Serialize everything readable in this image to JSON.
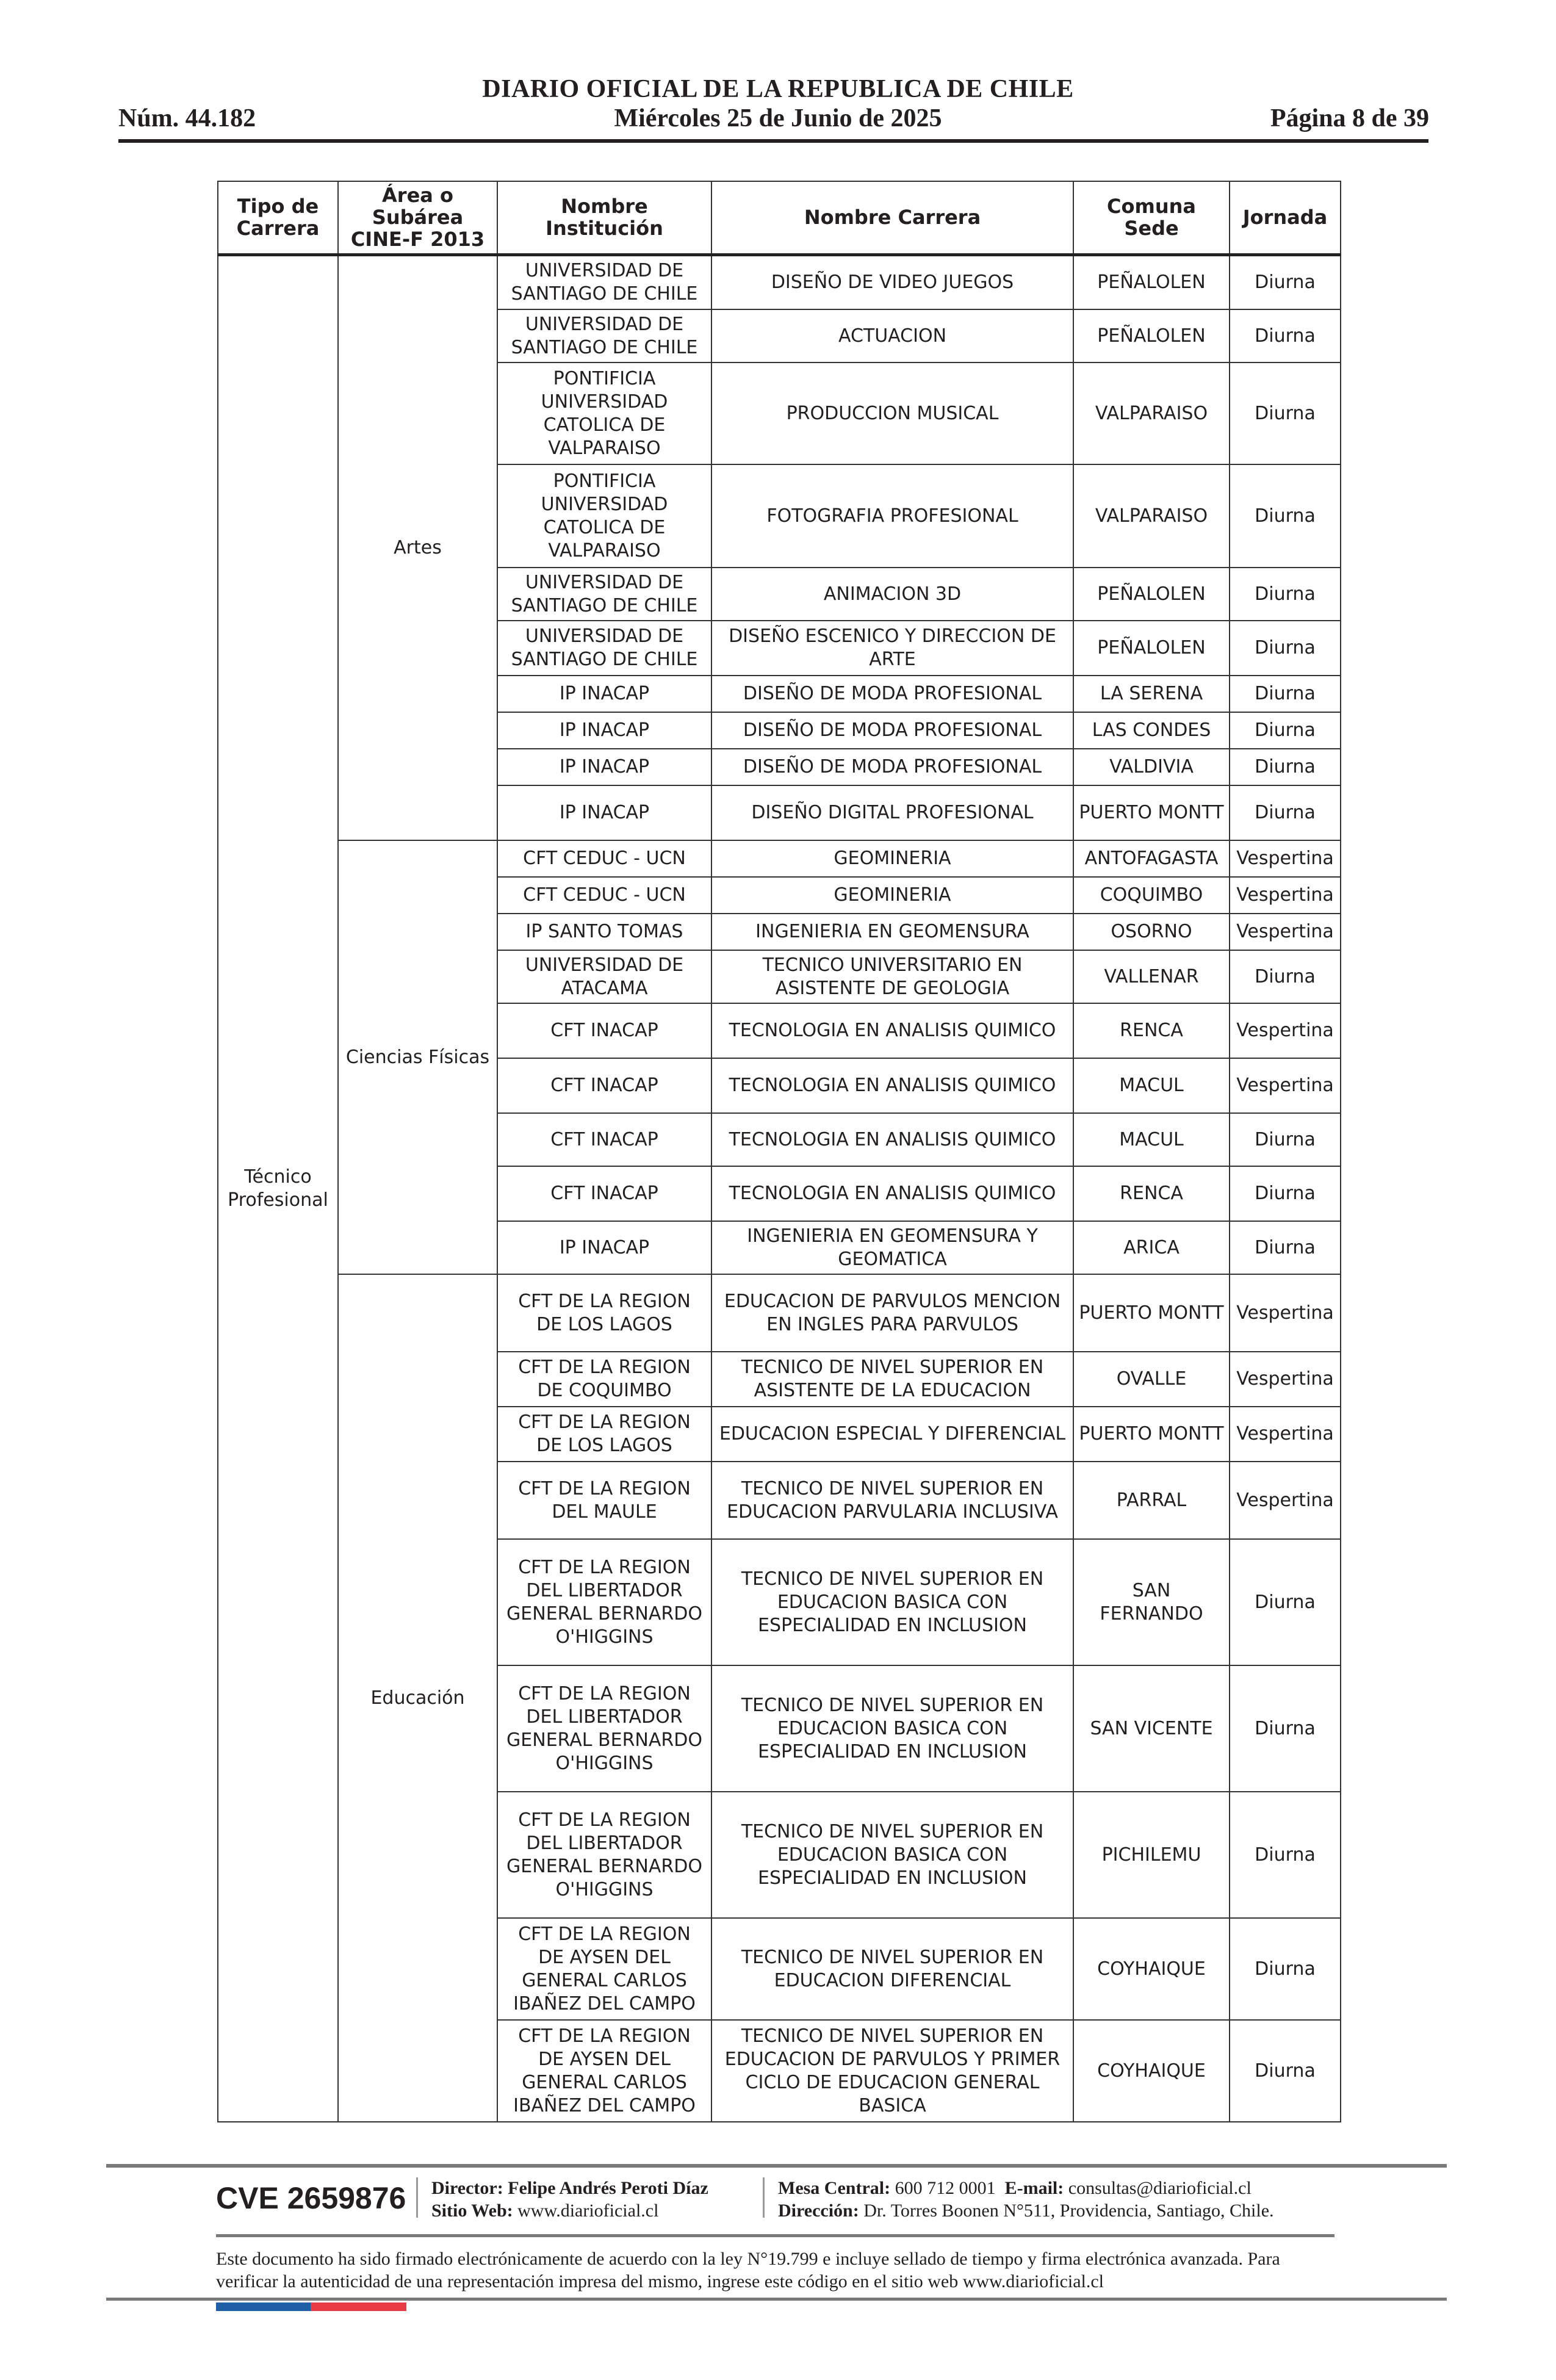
{
  "header": {
    "title": "DIARIO OFICIAL DE LA REPUBLICA DE CHILE",
    "number": "Núm. 44.182",
    "date": "Miércoles 25 de Junio de 2025",
    "page": "Página 8 de 39"
  },
  "table": {
    "headers": [
      "Tipo de Carrera",
      "Área o Subárea CINE-F 2013",
      "Nombre Institución",
      "Nombre Carrera",
      "Comuna Sede",
      "Jornada"
    ],
    "tipo": "Técnico Profesional",
    "groups": [
      {
        "area": "Artes",
        "rows": [
          [
            "UNIVERSIDAD DE SANTIAGO DE CHILE",
            "DISEÑO DE VIDEO JUEGOS",
            "PEÑALOLEN",
            "Diurna"
          ],
          [
            "UNIVERSIDAD DE SANTIAGO DE CHILE",
            "ACTUACION",
            "PEÑALOLEN",
            "Diurna"
          ],
          [
            "PONTIFICIA UNIVERSIDAD CATOLICA DE VALPARAISO",
            "PRODUCCION MUSICAL",
            "VALPARAISO",
            "Diurna"
          ],
          [
            "PONTIFICIA UNIVERSIDAD CATOLICA DE VALPARAISO",
            "FOTOGRAFIA PROFESIONAL",
            "VALPARAISO",
            "Diurna"
          ],
          [
            "UNIVERSIDAD DE SANTIAGO DE CHILE",
            "ANIMACION 3D",
            "PEÑALOLEN",
            "Diurna"
          ],
          [
            "UNIVERSIDAD DE SANTIAGO DE CHILE",
            "DISEÑO ESCENICO Y DIRECCION DE ARTE",
            "PEÑALOLEN",
            "Diurna"
          ],
          [
            "IP INACAP",
            "DISEÑO DE MODA PROFESIONAL",
            "LA SERENA",
            "Diurna"
          ],
          [
            "IP INACAP",
            "DISEÑO DE MODA PROFESIONAL",
            "LAS CONDES",
            "Diurna"
          ],
          [
            "IP INACAP",
            "DISEÑO DE MODA PROFESIONAL",
            "VALDIVIA",
            "Diurna"
          ],
          [
            "IP INACAP",
            "DISEÑO DIGITAL PROFESIONAL",
            "PUERTO MONTT",
            "Diurna"
          ]
        ]
      },
      {
        "area": "Ciencias Físicas",
        "rows": [
          [
            "CFT CEDUC - UCN",
            "GEOMINERIA",
            "ANTOFAGASTA",
            "Vespertina"
          ],
          [
            "CFT CEDUC - UCN",
            "GEOMINERIA",
            "COQUIMBO",
            "Vespertina"
          ],
          [
            "IP SANTO TOMAS",
            "INGENIERIA EN GEOMENSURA",
            "OSORNO",
            "Vespertina"
          ],
          [
            "UNIVERSIDAD DE ATACAMA",
            "TECNICO UNIVERSITARIO EN ASISTENTE DE GEOLOGIA",
            "VALLENAR",
            "Diurna"
          ],
          [
            "CFT INACAP",
            "TECNOLOGIA EN ANALISIS QUIMICO",
            "RENCA",
            "Vespertina"
          ],
          [
            "CFT INACAP",
            "TECNOLOGIA EN ANALISIS QUIMICO",
            "MACUL",
            "Vespertina"
          ],
          [
            "CFT INACAP",
            "TECNOLOGIA EN ANALISIS QUIMICO",
            "MACUL",
            "Diurna"
          ],
          [
            "CFT INACAP",
            "TECNOLOGIA EN ANALISIS QUIMICO",
            "RENCA",
            "Diurna"
          ],
          [
            "IP INACAP",
            "INGENIERIA EN GEOMENSURA Y GEOMATICA",
            "ARICA",
            "Diurna"
          ]
        ]
      },
      {
        "area": "Educación",
        "rows": [
          [
            "CFT DE LA REGION DE LOS LAGOS",
            "EDUCACION DE PARVULOS MENCION EN INGLES PARA PARVULOS",
            "PUERTO MONTT",
            "Vespertina"
          ],
          [
            "CFT DE LA REGION DE COQUIMBO",
            "TECNICO DE NIVEL SUPERIOR EN ASISTENTE DE LA EDUCACION",
            "OVALLE",
            "Vespertina"
          ],
          [
            "CFT DE LA REGION DE LOS LAGOS",
            "EDUCACION ESPECIAL Y DIFERENCIAL",
            "PUERTO MONTT",
            "Vespertina"
          ],
          [
            "CFT DE LA REGION DEL MAULE",
            "TECNICO DE NIVEL SUPERIOR EN EDUCACION PARVULARIA INCLUSIVA",
            "PARRAL",
            "Vespertina"
          ],
          [
            "CFT DE LA REGION DEL LIBERTADOR GENERAL BERNARDO O'HIGGINS",
            "TECNICO DE NIVEL SUPERIOR EN EDUCACION BASICA CON ESPECIALIDAD EN INCLUSION",
            "SAN FERNANDO",
            "Diurna"
          ],
          [
            "CFT DE LA REGION DEL LIBERTADOR GENERAL BERNARDO O'HIGGINS",
            "TECNICO DE NIVEL SUPERIOR EN EDUCACION BASICA CON ESPECIALIDAD EN INCLUSION",
            "SAN VICENTE",
            "Diurna"
          ],
          [
            "CFT DE LA REGION DEL LIBERTADOR GENERAL BERNARDO O'HIGGINS",
            "TECNICO DE NIVEL SUPERIOR EN EDUCACION BASICA CON ESPECIALIDAD EN INCLUSION",
            "PICHILEMU",
            "Diurna"
          ],
          [
            "CFT DE LA REGION DE AYSEN DEL GENERAL CARLOS IBAÑEZ DEL CAMPO",
            "TECNICO DE NIVEL SUPERIOR EN EDUCACION DIFERENCIAL",
            "COYHAIQUE",
            "Diurna"
          ],
          [
            "CFT DE LA REGION DE AYSEN DEL GENERAL CARLOS IBAÑEZ DEL CAMPO",
            "TECNICO DE NIVEL SUPERIOR EN EDUCACION DE PARVULOS Y PRIMER CICLO DE EDUCACION GENERAL BASICA",
            "COYHAIQUE",
            "Diurna"
          ]
        ]
      }
    ]
  },
  "footer": {
    "cve": "CVE 2659876",
    "director_label": "Director:",
    "director": "Felipe Andrés Peroti Díaz",
    "web_label": "Sitio Web:",
    "web": "www.diarioficial.cl",
    "phone_label": "Mesa Central:",
    "phone": "600 712 0001",
    "email_label": "E-mail:",
    "email": "consultas@diarioficial.cl",
    "address_label": "Dirección:",
    "address": "Dr. Torres Boonen N°511, Providencia, Santiago, Chile.",
    "disclaimer": "Este documento ha sido firmado electrónicamente de acuerdo con la ley N°19.799 e incluye sellado de tiempo y firma electrónica avanzada. Para verificar la autenticidad de una representación impresa del mismo, ingrese este código en el sitio web www.diarioficial.cl",
    "flag_colors": [
      "#1f5fa8",
      "#e63b44"
    ]
  }
}
